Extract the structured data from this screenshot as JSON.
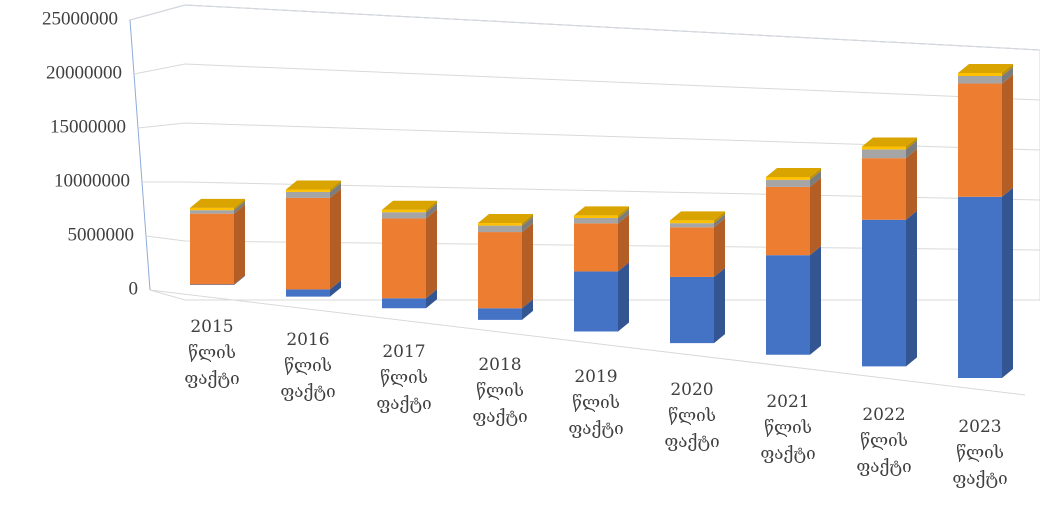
{
  "chart_data": {
    "type": "bar3d_stacked",
    "categories": [
      "2015 წლის ფაქტი",
      "2016 წლის ფაქტი",
      "2017 წლის ფაქტი",
      "2018 წლის ფაქტი",
      "2019 წლის ფაქტი",
      "2020 წლის ფაქტი",
      "2021 წლის ფაქტი",
      "2022 წლის ფაქტი",
      "2023 წლის ფაქტი"
    ],
    "series": [
      {
        "color": "#4472c4",
        "values": [
          50000,
          600000,
          800000,
          900000,
          4500000,
          4800000,
          7000000,
          10000000,
          12000000
        ]
      },
      {
        "color": "#ed7d31",
        "values": [
          6100000,
          7600000,
          6400000,
          5900000,
          3600000,
          3600000,
          4800000,
          4200000,
          7500000
        ]
      },
      {
        "color": "#a5a5a5",
        "values": [
          300000,
          500000,
          500000,
          500000,
          400000,
          300000,
          500000,
          600000,
          500000
        ]
      },
      {
        "color": "#ffc000",
        "values": [
          200000,
          200000,
          200000,
          200000,
          200000,
          200000,
          200000,
          200000,
          200000
        ]
      }
    ],
    "ylim": [
      0,
      25000000
    ],
    "yticks": [
      0,
      5000000,
      10000000,
      15000000,
      20000000,
      25000000
    ],
    "grid": true
  }
}
